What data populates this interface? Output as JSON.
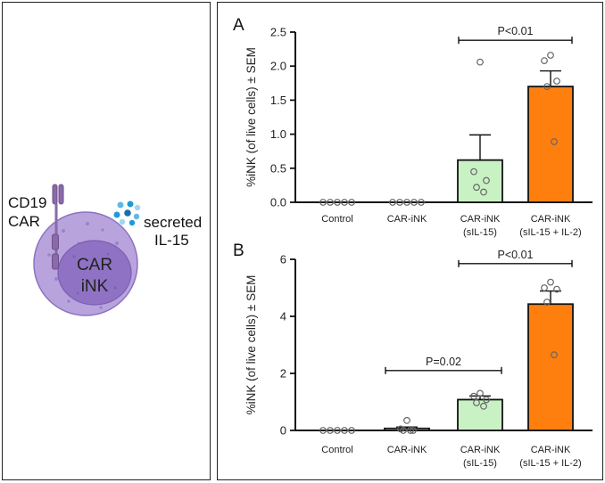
{
  "diagram": {
    "receptor_label_line1": "CD19",
    "receptor_label_line2": "CAR",
    "cytokine_label_line1": "secreted",
    "cytokine_label_line2": "IL-15",
    "cell_label_line1": "CAR",
    "cell_label_line2": "iNK",
    "colors": {
      "cell_outer": "#b8a3dd",
      "cell_inner": "#8f72c4",
      "receptor": "#8a6aa8",
      "cytokine": "#1f9ad6"
    }
  },
  "chart_data": [
    {
      "panel_label": "A",
      "type": "bar",
      "ylabel": "%iNK (of live cells) ± SEM",
      "ylim": [
        0,
        2.5
      ],
      "yticks": [
        "0.0",
        "0.5",
        "1.0",
        "1.5",
        "2.0",
        "2.5"
      ],
      "categories": [
        {
          "line1": "Control",
          "line2": ""
        },
        {
          "line1": "CAR-iNK",
          "line2": ""
        },
        {
          "line1": "CAR-iNK",
          "line2": "(sIL-15)"
        },
        {
          "line1": "CAR-iNK",
          "line2": "(sIL-15 + IL-2)"
        }
      ],
      "values": [
        0,
        0,
        0.62,
        1.7
      ],
      "sem": [
        0,
        0,
        0.37,
        0.23
      ],
      "bar_colors": [
        "#ffffff",
        "#ffffff",
        "#c9f2c4",
        "#ff7f0e"
      ],
      "points": [
        [
          0,
          0,
          0,
          0,
          0
        ],
        [
          0,
          0,
          0,
          0,
          0
        ],
        [
          2.06,
          0.45,
          0.32,
          0.22,
          0.15
        ],
        [
          2.16,
          2.08,
          1.78,
          1.7,
          0.89
        ]
      ],
      "significance": [
        {
          "from": 2,
          "to": 3,
          "label": "P<0.01",
          "y": 2.38
        }
      ]
    },
    {
      "panel_label": "B",
      "type": "bar",
      "ylabel": "%iNK (of live cells) ± SEM",
      "ylim": [
        0,
        6
      ],
      "yticks": [
        "0",
        "2",
        "4",
        "6"
      ],
      "categories": [
        {
          "line1": "Control",
          "line2": ""
        },
        {
          "line1": "CAR-iNK",
          "line2": ""
        },
        {
          "line1": "CAR-iNK",
          "line2": "(sIL-15)"
        },
        {
          "line1": "CAR-iNK",
          "line2": "(sIL-15 + IL-2)"
        }
      ],
      "values": [
        0,
        0.07,
        1.08,
        4.43
      ],
      "sem": [
        0,
        0.05,
        0.13,
        0.46
      ],
      "bar_colors": [
        "#ffffff",
        "#ffffff",
        "#c9f2c4",
        "#ff7f0e"
      ],
      "points": [
        [
          0,
          0,
          0,
          0,
          0
        ],
        [
          0.35,
          0.05,
          0,
          0,
          0
        ],
        [
          1.3,
          1.2,
          1.08,
          0.97,
          0.85
        ],
        [
          5.2,
          5.0,
          4.95,
          4.5,
          2.65
        ]
      ],
      "significance": [
        {
          "from": 1,
          "to": 2,
          "label": "P=0.02",
          "y": 2.1
        },
        {
          "from": 2,
          "to": 3,
          "label": "P<0.01",
          "y": 5.85
        }
      ]
    }
  ]
}
